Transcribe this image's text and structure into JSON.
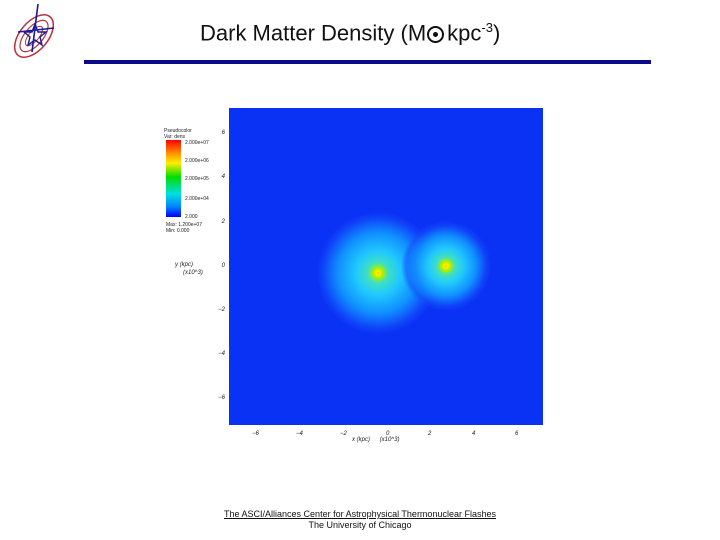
{
  "header": {
    "title_prefix": "Dark Matter Density (M",
    "title_unit": "kpc",
    "title_exponent": "-3",
    "title_suffix": ")",
    "logo_icon": "flash-center-logo-icon"
  },
  "plot": {
    "colorbar_title": "Pseudocolor",
    "colorbar_var": "Var: dens",
    "colorbar_labels": [
      "2.000e+07",
      "2.000e+06",
      "2.000e+05",
      "2.000e+04",
      "2.000"
    ],
    "max_label": "Max: 1.200e+07",
    "min_label": "Min: 0.000",
    "y_ticks": [
      "6",
      "4",
      "2",
      "0",
      "−2",
      "−4",
      "−6"
    ],
    "x_ticks": [
      "−6",
      "−4",
      "−2",
      "0",
      "2",
      "4",
      "6"
    ],
    "y_label": "y  (kpc)",
    "y_scale": "(x10^3)",
    "x_label": "x  (kpc)",
    "x_scale": "(x10^3)",
    "background_color": "#0a32f5"
  },
  "footer": {
    "line1": "The ASCI/Alliances Center for Astrophysical Thermonuclear Flashes",
    "line2": "The University of Chicago"
  }
}
